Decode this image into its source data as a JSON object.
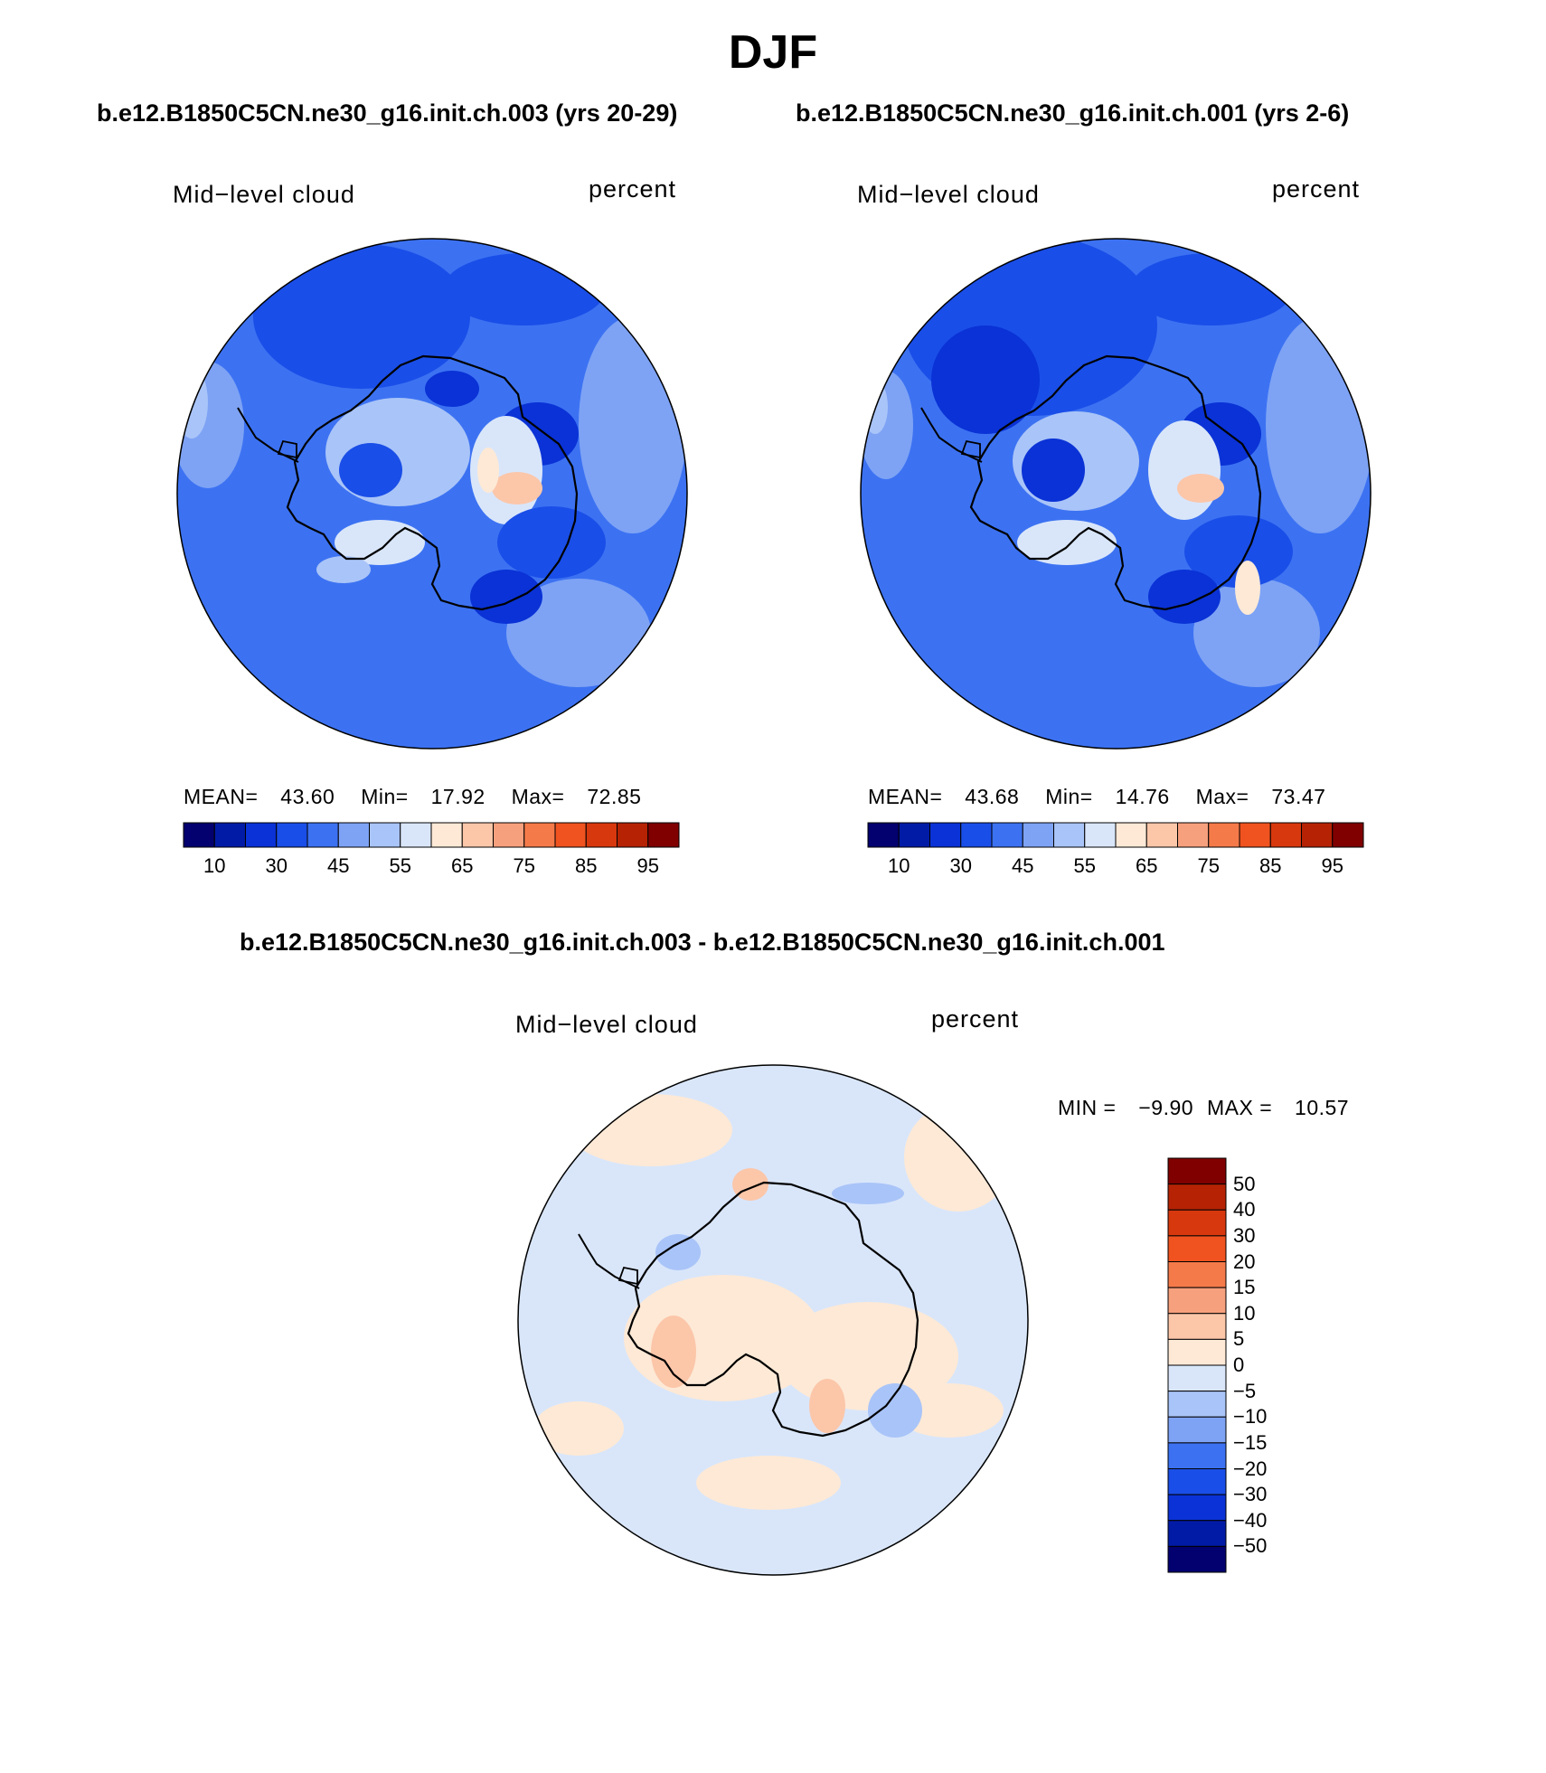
{
  "page": {
    "title": "DJF",
    "case1_title": "b.e12.B1850C5CN.ne30_g16.init.ch.003 (yrs 20-29)",
    "case2_title": "b.e12.B1850C5CN.ne30_g16.init.ch.001 (yrs 2-6)",
    "diff_title": "b.e12.B1850C5CN.ne30_g16.init.ch.003 - b.e12.B1850C5CN.ne30_g16.init.ch.001"
  },
  "panels": [
    {
      "variable": "Mid−level cloud",
      "units": "percent",
      "mean_label": "MEAN=",
      "mean": "43.60",
      "min_label": "Min=",
      "min": "17.92",
      "max_label": "Max=",
      "max": "72.85"
    },
    {
      "variable": "Mid−level cloud",
      "units": "percent",
      "mean_label": "MEAN=",
      "mean": "43.68",
      "min_label": "Min=",
      "min": "14.76",
      "max_label": "Max=",
      "max": "73.47"
    }
  ],
  "diff_panel": {
    "variable": "Mid−level cloud",
    "units": "percent",
    "min_label": "MIN =",
    "min": "−9.90",
    "max_label": "MAX =",
    "max": "10.57"
  },
  "colorbar_main": {
    "colors": [
      "#03006f",
      "#021ba6",
      "#0a32d6",
      "#1a4ee8",
      "#3c72f2",
      "#7ea3f5",
      "#a9c4f8",
      "#d9e6fa",
      "#fde9d6",
      "#fcc6a9",
      "#f7a07d",
      "#f57a4a",
      "#f0531f",
      "#d8380e",
      "#b52304",
      "#800000"
    ],
    "labels": [
      "10",
      "30",
      "45",
      "55",
      "65",
      "75",
      "85",
      "95"
    ]
  },
  "colorbar_diff": {
    "colors_top_to_bottom": [
      "#800000",
      "#b52304",
      "#d8380e",
      "#f0531f",
      "#f57a4a",
      "#f7a07d",
      "#fcc6a9",
      "#fde9d6",
      "#d9e6fa",
      "#a9c4f8",
      "#7ea3f5",
      "#3c72f2",
      "#1a4ee8",
      "#0a32d6",
      "#021ba6",
      "#03006f"
    ],
    "labels_top_to_bottom": [
      "50",
      "40",
      "30",
      "20",
      "15",
      "10",
      "5",
      "0",
      "−5",
      "−10",
      "−15",
      "−20",
      "−30",
      "−40",
      "−50"
    ]
  }
}
